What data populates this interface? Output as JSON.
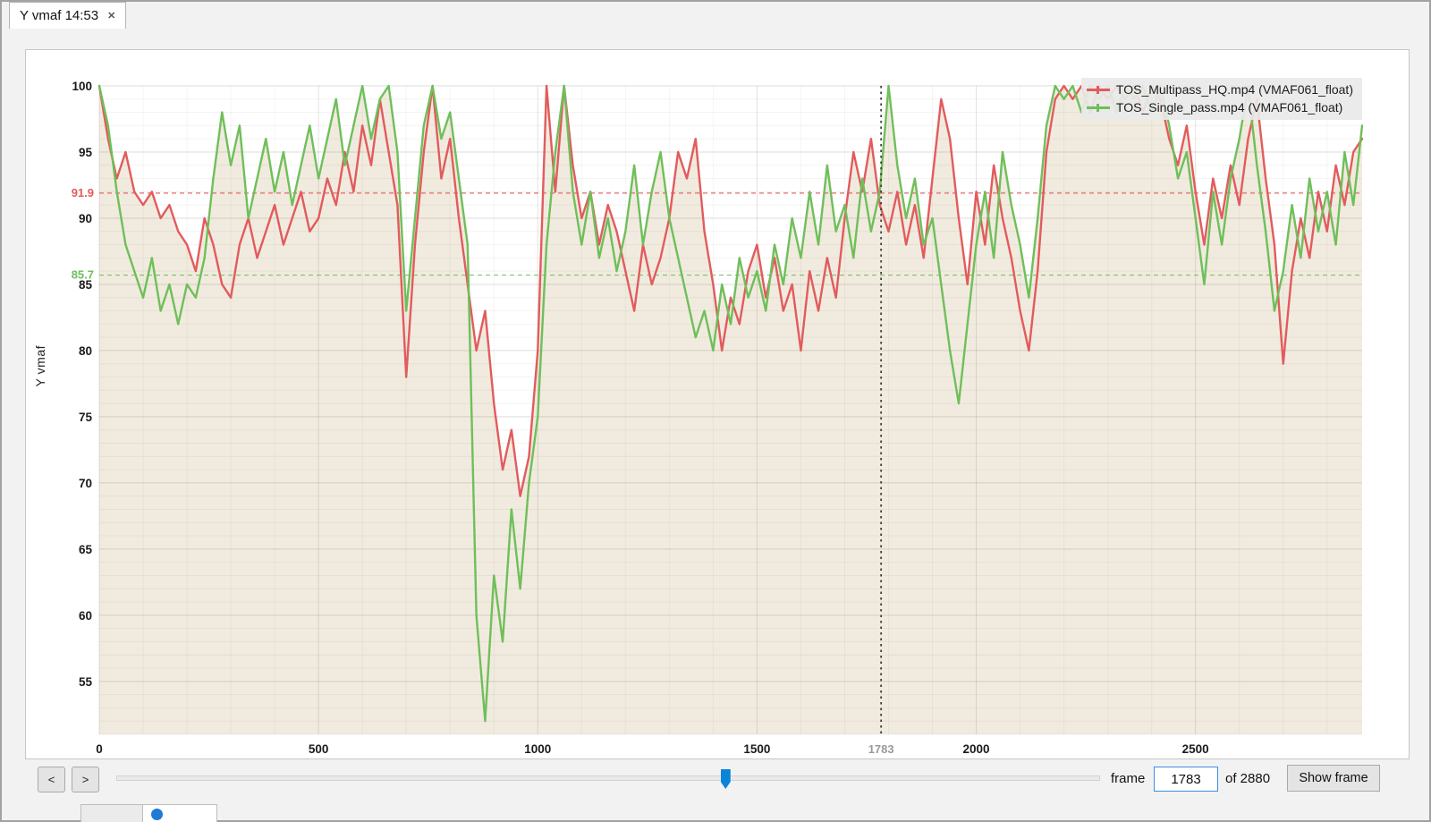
{
  "tab": {
    "title": "Y vmaf 14:53",
    "close_glyph": "✕"
  },
  "controls": {
    "prev_label": "<",
    "next_label": ">",
    "frame_label": "frame",
    "frame_value": "1783",
    "of_label": "of 2880",
    "show_frame_label": "Show frame"
  },
  "bottom_strip": {
    "status_icon": "blue-dot-icon"
  },
  "chart_data": {
    "type": "line",
    "title": "",
    "ylabel": "Y vmaf",
    "xlabel": "",
    "xlim": [
      0,
      2880
    ],
    "ylim": [
      51,
      100
    ],
    "y_ticks": [
      100,
      95,
      90,
      85,
      80,
      75,
      70,
      65,
      60,
      55
    ],
    "x_ticks": [
      0,
      500,
      1000,
      1500,
      2000,
      2500
    ],
    "cursor_frame": 1783,
    "grid": true,
    "legend_position": "top-right",
    "fill_color": "#f1ebdf",
    "mean_lines": [
      {
        "value": 91.9,
        "label": "91.9",
        "color": "#e25b5d"
      },
      {
        "value": 85.7,
        "label": "85.7",
        "color": "#6fbf5a"
      }
    ],
    "x_step": 20,
    "series": [
      {
        "name": "TOS_Multipass_HQ.mp4 (VMAF061_float)",
        "color": "#e25b5d",
        "values": [
          100,
          96,
          93,
          95,
          92,
          91,
          92,
          90,
          91,
          89,
          88,
          86,
          90,
          88,
          85,
          84,
          88,
          90,
          87,
          89,
          91,
          88,
          90,
          92,
          89,
          90,
          93,
          91,
          95,
          92,
          97,
          94,
          99,
          95,
          91,
          78,
          88,
          95,
          100,
          93,
          96,
          90,
          85,
          80,
          83,
          76,
          71,
          74,
          69,
          72,
          80,
          100,
          92,
          100,
          94,
          90,
          92,
          88,
          91,
          89,
          86,
          83,
          88,
          85,
          87,
          90,
          95,
          93,
          96,
          89,
          85,
          80,
          84,
          82,
          86,
          88,
          84,
          87,
          83,
          85,
          80,
          86,
          83,
          87,
          84,
          90,
          95,
          92,
          96,
          91,
          89,
          92,
          88,
          91,
          87,
          93,
          99,
          96,
          90,
          85,
          92,
          88,
          94,
          90,
          87,
          83,
          80,
          86,
          95,
          99,
          100,
          99,
          100,
          98,
          100,
          99,
          100,
          99,
          100,
          98,
          100,
          99,
          96,
          94,
          97,
          92,
          88,
          93,
          90,
          94,
          91,
          96,
          99,
          93,
          88,
          79,
          86,
          90,
          87,
          92,
          89,
          94,
          91,
          95,
          96
        ]
      },
      {
        "name": "TOS_Single_pass.mp4 (VMAF061_float)",
        "color": "#6fbf5a",
        "values": [
          100,
          97,
          92,
          88,
          86,
          84,
          87,
          83,
          85,
          82,
          85,
          84,
          87,
          93,
          98,
          94,
          97,
          90,
          93,
          96,
          92,
          95,
          91,
          94,
          97,
          93,
          96,
          99,
          94,
          97,
          100,
          96,
          99,
          100,
          95,
          83,
          90,
          97,
          100,
          96,
          98,
          93,
          88,
          60,
          52,
          63,
          58,
          68,
          62,
          70,
          75,
          88,
          95,
          100,
          92,
          88,
          92,
          87,
          90,
          86,
          89,
          94,
          88,
          92,
          95,
          90,
          87,
          84,
          81,
          83,
          80,
          85,
          82,
          87,
          84,
          86,
          83,
          88,
          85,
          90,
          87,
          92,
          88,
          94,
          89,
          91,
          87,
          93,
          89,
          92,
          100,
          94,
          90,
          93,
          88,
          90,
          85,
          80,
          76,
          82,
          88,
          92,
          87,
          95,
          91,
          88,
          84,
          90,
          97,
          100,
          99,
          100,
          98,
          100,
          99,
          100,
          98,
          100,
          99,
          100,
          98,
          100,
          97,
          93,
          95,
          90,
          85,
          92,
          88,
          93,
          96,
          100,
          94,
          89,
          83,
          86,
          91,
          87,
          93,
          89,
          92,
          88,
          95,
          91,
          97
        ]
      }
    ]
  }
}
